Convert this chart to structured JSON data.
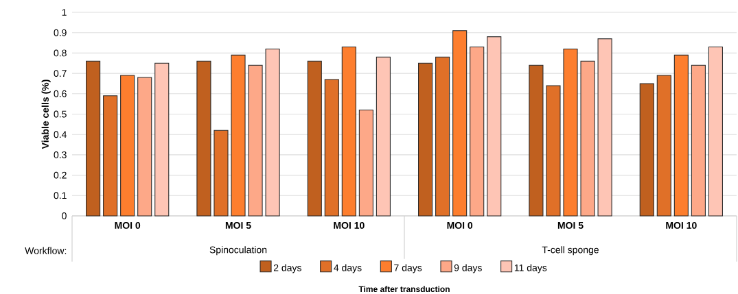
{
  "chart_data": {
    "type": "bar",
    "ylabel": "Viable cells (%)",
    "legend_title": "Time after transduction",
    "categories": [
      "MOI 0",
      "MOI 5",
      "MOI 10",
      "MOI 0",
      "MOI 5",
      "MOI 10"
    ],
    "series": [
      {
        "name": "2 days",
        "color": "#c0601f",
        "values": [
          0.76,
          0.76,
          0.76,
          0.75,
          0.74,
          0.65
        ]
      },
      {
        "name": "4 days",
        "color": "#e07028",
        "values": [
          0.59,
          0.42,
          0.67,
          0.78,
          0.64,
          0.69
        ]
      },
      {
        "name": "7 days",
        "color": "#fd7e2e",
        "values": [
          0.69,
          0.79,
          0.83,
          0.91,
          0.82,
          0.79
        ]
      },
      {
        "name": "9 days",
        "color": "#fda888",
        "values": [
          0.68,
          0.74,
          0.52,
          0.83,
          0.76,
          0.74
        ]
      },
      {
        "name": "11 days",
        "color": "#fec5b5",
        "values": [
          0.75,
          0.82,
          0.78,
          0.88,
          0.87,
          0.83
        ]
      }
    ],
    "ylim": [
      0,
      1
    ],
    "yticks": [
      0,
      0.1,
      0.2,
      0.3,
      0.4,
      0.5,
      0.6,
      0.7,
      0.8,
      0.9,
      1
    ],
    "grid": "y",
    "legend": "bottom",
    "annotations": [
      "Workflow:",
      "Spinoculation",
      "T-cell sponge"
    ]
  }
}
